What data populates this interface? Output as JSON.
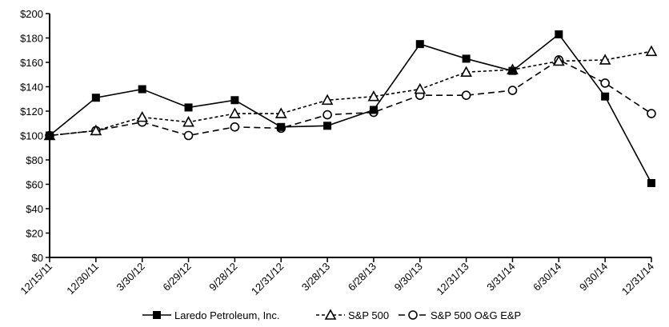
{
  "chart_data": {
    "type": "line",
    "title": "",
    "xlabel": "",
    "ylabel": "",
    "ylim": [
      0,
      200
    ],
    "ytick_step": 20,
    "ytick_prefix": "$",
    "grid": false,
    "legend_position": "bottom",
    "categories": [
      "12/15/11",
      "12/30/11",
      "3/30/12",
      "6/29/12",
      "9/28/12",
      "12/31/12",
      "3/28/13",
      "6/28/13",
      "9/30/13",
      "12/31/13",
      "3/31/14",
      "6/30/14",
      "9/30/14",
      "12/31/14"
    ],
    "series": [
      {
        "name": "Laredo Petroleum, Inc.",
        "marker": "filled-square",
        "line": "solid",
        "values": [
          100,
          131,
          138,
          123,
          129,
          107,
          108,
          121,
          175,
          163,
          153,
          183,
          132,
          61
        ]
      },
      {
        "name": "S&P 500",
        "marker": "open-triangle",
        "line": "short-dash",
        "values": [
          100,
          104,
          115,
          111,
          118,
          118,
          129,
          132,
          138,
          152,
          154,
          161,
          162,
          169
        ]
      },
      {
        "name": "S&P 500 O&G E&P",
        "marker": "open-circle",
        "line": "long-dash",
        "values": [
          100,
          104,
          111,
          100,
          107,
          106,
          117,
          119,
          133,
          133,
          137,
          162,
          143,
          118
        ]
      }
    ]
  }
}
